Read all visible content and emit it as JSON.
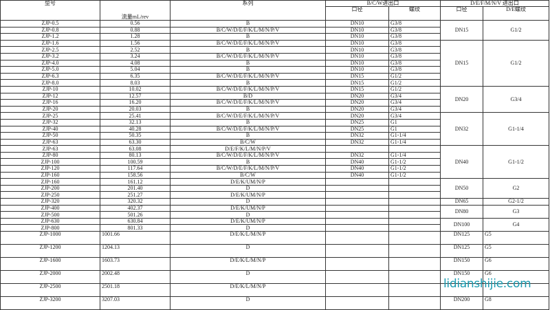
{
  "header": {
    "model": "型号",
    "flow": "流量mL/rev",
    "series": "系列",
    "bcw_group": "B/C/W进出口",
    "def_group": "D/E/F/M/N/V 进出口",
    "bcw_dn": "口径",
    "bcw_thread": "螺纹",
    "def_dn": "口径",
    "def_thread": "D/E螺纹"
  },
  "rows": [
    [
      "ZJP-0.5",
      "0.56",
      "B",
      "DN10",
      "G3/8"
    ],
    [
      "ZJP-0.8",
      "0.88",
      "B/C/W/D/E/F/K/L/M/N/P/V",
      "DN10",
      "G3/8"
    ],
    [
      "ZJP-1.2",
      "1.28",
      "B",
      "DN10",
      "G3/8"
    ],
    [
      "ZJP-1.6",
      "1.56",
      "B/C/W/D/E/F/K/L/M/N/P/V",
      "DN10",
      "G3/8"
    ],
    [
      "ZJP-2.5",
      "2.52",
      "B",
      "DN10",
      "G3/8"
    ],
    [
      "ZJP-3.2",
      "3.24",
      "B/C/W/D/E/F/K/L/M/N/P/V",
      "DN10",
      "G3/8"
    ],
    [
      "ZJP-4.0",
      "4.08",
      "B",
      "DN10",
      "G3/8"
    ],
    [
      "ZJP-5.0",
      "5.04",
      "B",
      "DN10",
      "G3/8"
    ],
    [
      "ZJP-6.3",
      "6.35",
      "B/C/W/D/E/F/K/L/M/N/P/V",
      "DN15",
      "G1/2"
    ],
    [
      "ZJP-8.0",
      "8.03",
      "B",
      "DN15",
      "G1/2"
    ],
    [
      "ZJP-10",
      "10.02",
      "B/C/W/D/E/F/K/L/M/N/P/V",
      "DN15",
      "G1/2"
    ],
    [
      "ZJP-12",
      "12.57",
      "B/D",
      "DN20",
      "G3/4"
    ],
    [
      "ZJP-16",
      "16.20",
      "B/C/W/D/E/F/K/L/M/N/P/V",
      "DN20",
      "G3/4"
    ],
    [
      "ZJP-20",
      "20.03",
      "B",
      "DN20",
      "G3/4"
    ],
    [
      "ZJP-25",
      "25.41",
      "B/C/W/D/E/F/K/L/M/N/P/V",
      "DN20",
      "G3/4"
    ],
    [
      "ZJP-32",
      "32.13",
      "B",
      "DN25",
      "G1"
    ],
    [
      "ZJP-40",
      "40.28",
      "B/C/W/D/E/F/K/L/M/N/P/V",
      "DN25",
      "G1"
    ],
    [
      "ZJP-50",
      "50.35",
      "B",
      "DN32",
      "G1-1/4"
    ],
    [
      "ZJP-63",
      "63.30",
      "B/C/W",
      "DN32",
      "G1-1/4"
    ],
    [
      "ZJP-63",
      "63.08",
      "D/E/F/K/L/M/N/P/V",
      "",
      ""
    ],
    [
      "ZJP-80",
      "80.13",
      "B/C/W/D/E/F/K/L/M/N/P/V",
      "DN32",
      "G1-1/4"
    ],
    [
      "ZJP-100",
      "100.59",
      "B",
      "DN40",
      "G1-1/2"
    ],
    [
      "ZJP-120",
      "117.64",
      "B/C/W/D/E/F/K/L/M/N/P/V",
      "DN40",
      "G1-1/2"
    ],
    [
      "ZJP-160",
      "158.56",
      "B/C/W",
      "DN40",
      "G1-1/2"
    ],
    [
      "ZJP-160",
      "161.12",
      "D/E/K/UM/N/P",
      "",
      ""
    ],
    [
      "ZJP-200",
      "201.40",
      "D",
      "",
      ""
    ],
    [
      "ZJP-250",
      "251.27",
      "D/E/K/UM/N/P",
      "",
      ""
    ],
    [
      "ZJP-320",
      "320.32",
      "D",
      "",
      ""
    ],
    [
      "ZJP-400",
      "402.37",
      "D/E/K/UM/N/P",
      "",
      ""
    ],
    [
      "ZJP-500",
      "501.26",
      "D",
      "",
      ""
    ],
    [
      "ZJP-630",
      "630.84",
      "D/E/K/UM/N/P",
      "",
      ""
    ],
    [
      "ZJP-800",
      "801.33",
      "D",
      "",
      ""
    ]
  ],
  "groups": [
    {
      "span": 3,
      "dn": "DN15",
      "thread": "G1/2"
    },
    {
      "span": 7,
      "dn": "DN15",
      "thread": "G1/2"
    },
    {
      "span": 4,
      "dn": "DN20",
      "thread": "G3/4"
    },
    {
      "span": 5,
      "dn": "DN32",
      "thread": "G1-1/4"
    },
    {
      "span": 5,
      "dn": "DN40",
      "thread": "G1-1/2"
    },
    {
      "span": 3,
      "dn": "DN50",
      "thread": "G2"
    },
    {
      "span": 1,
      "dn": "DN65",
      "thread": "G2-1/2"
    },
    {
      "span": 2,
      "dn": "DN80",
      "thread": "G3"
    },
    {
      "span": 2,
      "dn": "DN100",
      "thread": "G4"
    }
  ],
  "big_rows": [
    [
      "ZJP-1000",
      "1001.66",
      "D/E/K/L/M/N/P",
      "DN125",
      "G5"
    ],
    [
      "ZJP-1200",
      "1204.13",
      "D",
      "DN125",
      "G5"
    ],
    [
      "ZJP-1600",
      "1603.73",
      "D/E/K/L/M/N/P",
      "DN150",
      "G6"
    ],
    [
      "ZJP-2000",
      "2002.48",
      "D",
      "DN150",
      "G6"
    ],
    [
      "ZJP-2500",
      "2501.18",
      "D/E/K/L/M/N/P",
      "",
      ""
    ],
    [
      "ZJP-3200",
      "3207.03",
      "D",
      "DN200",
      "G8"
    ]
  ],
  "watermark": "lidianshijie.com",
  "colors": {
    "watermark": "#1a9bb0",
    "border": "#333333"
  }
}
